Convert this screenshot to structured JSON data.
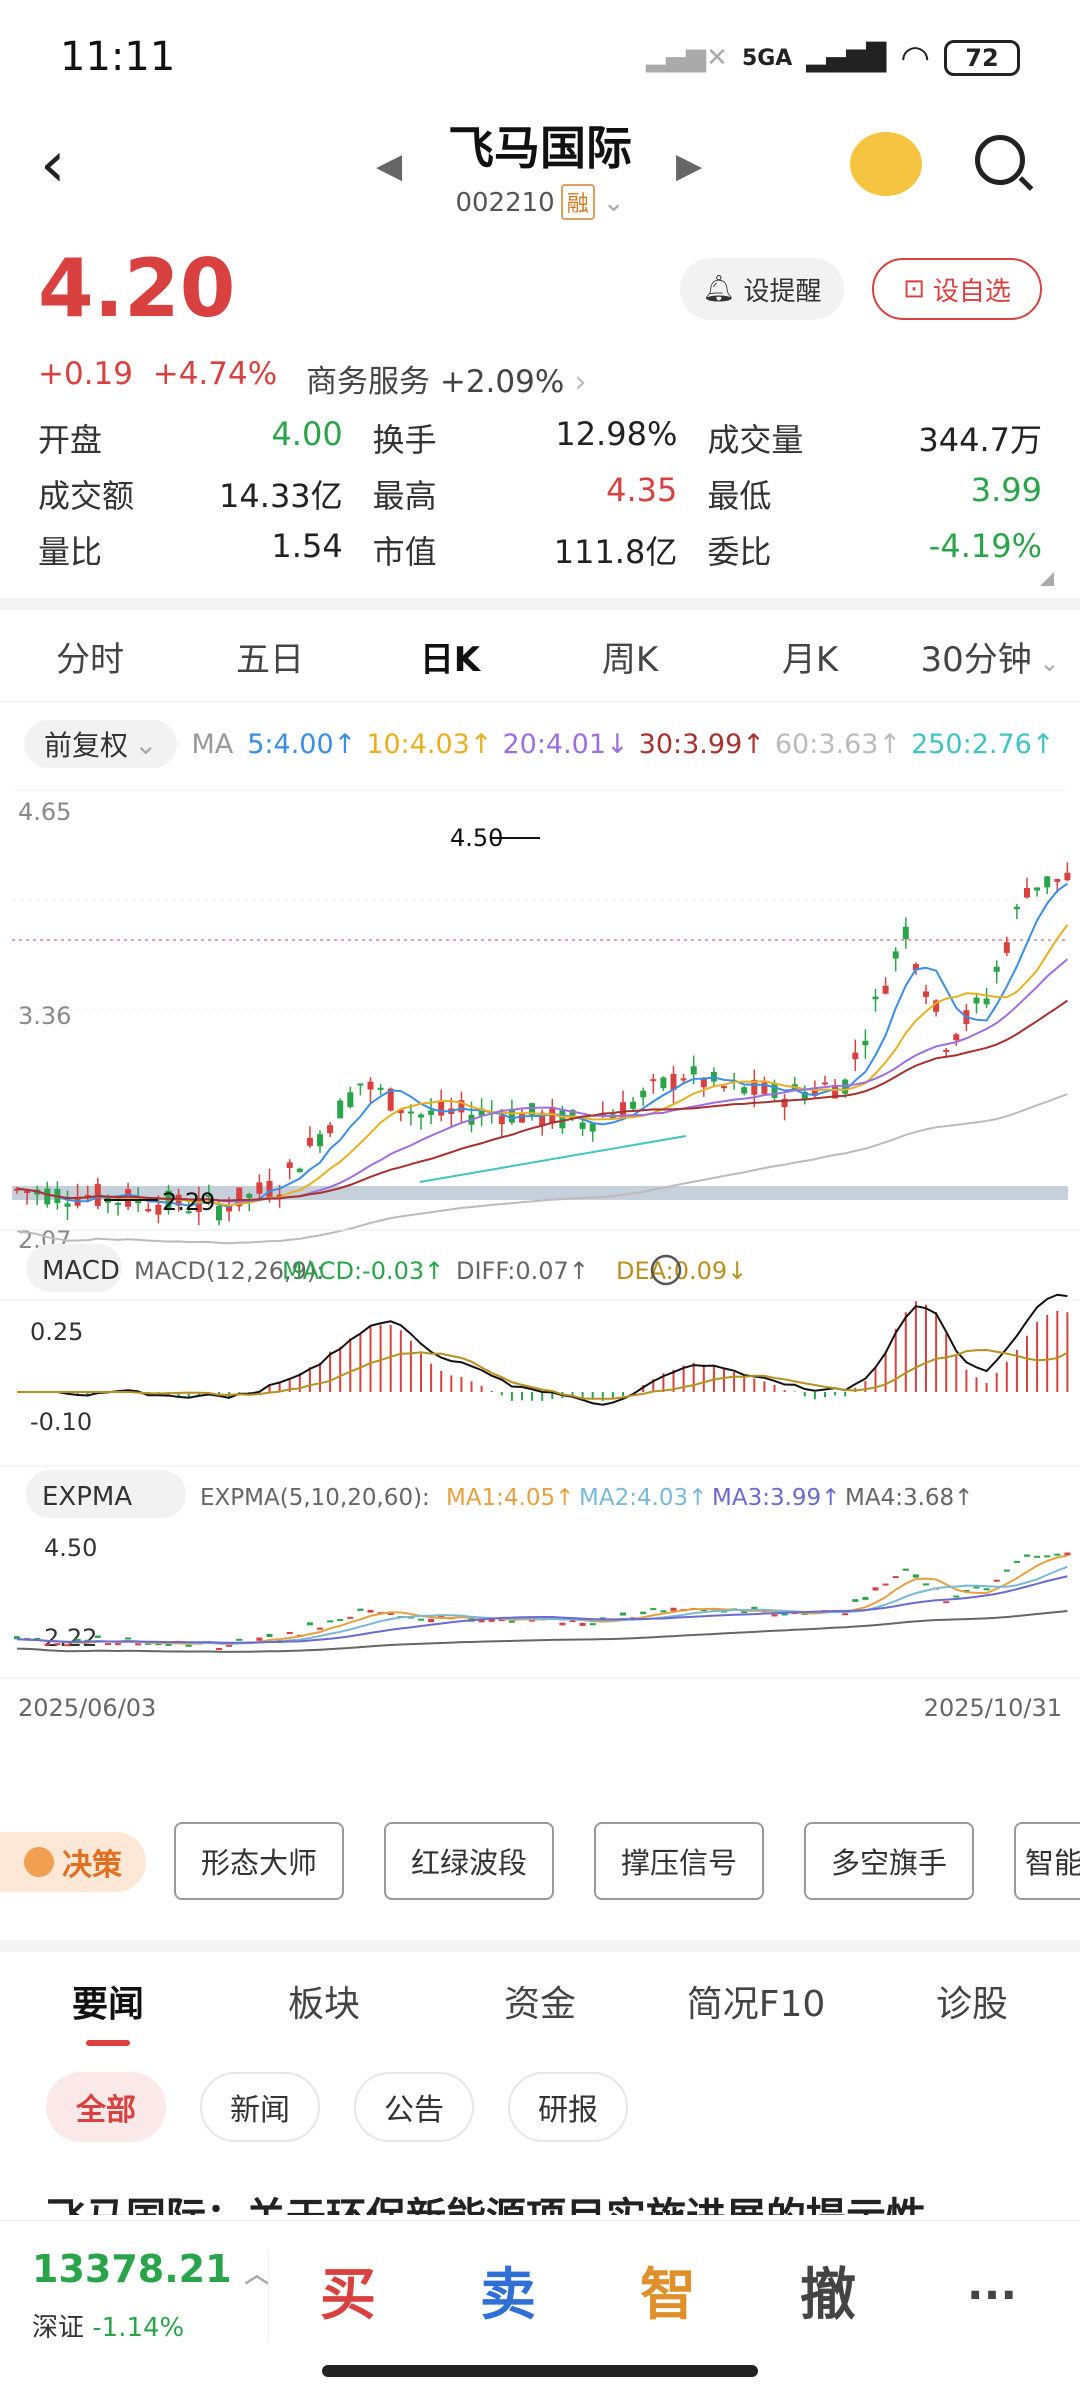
{
  "status": {
    "time": "11:11",
    "network": "5GA",
    "battery": "72"
  },
  "nav": {
    "name": "飞马国际",
    "code": "002210",
    "tag": "融"
  },
  "quote": {
    "price": "4.20",
    "change": "+0.19",
    "pct": "+4.74%",
    "sector_name": "商务服务",
    "sector_pct": "+2.09%"
  },
  "buttons": {
    "alert": "设提醒",
    "watch": "设自选"
  },
  "stats": [
    [
      {
        "l": "开盘",
        "v": "4.00",
        "c": "green"
      },
      {
        "l": "换手",
        "v": "12.98%",
        "c": ""
      },
      {
        "l": "成交量",
        "v": "344.7万",
        "c": ""
      }
    ],
    [
      {
        "l": "成交额",
        "v": "14.33亿",
        "c": ""
      },
      {
        "l": "最高",
        "v": "4.35",
        "c": "red"
      },
      {
        "l": "最低",
        "v": "3.99",
        "c": "green"
      }
    ],
    [
      {
        "l": "量比",
        "v": "1.54",
        "c": ""
      },
      {
        "l": "市值",
        "v": "111.8亿",
        "c": ""
      },
      {
        "l": "委比",
        "v": "-4.19%",
        "c": "green"
      }
    ]
  ],
  "tabs": [
    "分时",
    "五日",
    "日K",
    "周K",
    "月K",
    "30分钟"
  ],
  "active_tab": "日K",
  "chart": {
    "adjust": "前复权",
    "ma_label": "MA",
    "ma": [
      {
        "t": "5:4.00↑",
        "c": "#3a8ee6"
      },
      {
        "t": "10:4.03↑",
        "c": "#e6b020"
      },
      {
        "t": "20:4.01↓",
        "c": "#9c6fe0"
      },
      {
        "t": "30:3.99↑",
        "c": "#a83030"
      },
      {
        "t": "60:3.63↑",
        "c": "#bbbbbb"
      },
      {
        "t": "250:2.76↑",
        "c": "#40c4c0"
      }
    ],
    "y_top": "4.65",
    "y_mid": "3.36",
    "y_bot": "2.07",
    "hi_label": "4.50",
    "lo_label": "2.29",
    "macd_name": "MACD",
    "macd_params": "MACD(12,26,9):",
    "macd_vals": [
      {
        "t": "MACD:-0.03↑",
        "c": "#2aa44a"
      },
      {
        "t": "DIFF:0.07↑",
        "c": "#666"
      },
      {
        "t": "DEA:0.09↓",
        "c": "#b89020"
      }
    ],
    "macd_top": "0.25",
    "macd_bot": "-0.10",
    "expma_name": "EXPMA",
    "expma_params": "EXPMA(5,10,20,60):",
    "expma_vals": [
      {
        "t": "MA1:4.05↑",
        "c": "#e6a040"
      },
      {
        "t": "MA2:4.03↑",
        "c": "#7ab8d8"
      },
      {
        "t": "MA3:3.99↑",
        "c": "#6a6ad0"
      },
      {
        "t": "MA4:3.68↑",
        "c": "#666"
      }
    ],
    "expma_top": "4.50",
    "expma_bot": "2.22",
    "date_start": "2025/06/03",
    "date_end": "2025/10/31"
  },
  "tools": [
    "决策",
    "形态大师",
    "红绿波段",
    "撑压信号",
    "多空旗手",
    "智能"
  ],
  "news_tabs": [
    "要闻",
    "板块",
    "资金",
    "简况F10",
    "诊股"
  ],
  "news_sub": [
    "全部",
    "新闻",
    "公告",
    "研报"
  ],
  "headline": "飞马国际：关于环保新能源项目实施进展的提示性",
  "bottom": {
    "index_value": "13378.21",
    "index_name": "深证",
    "index_pct": "-1.14%",
    "buy": "买",
    "sell": "卖",
    "smart": "智",
    "cancel": "撤",
    "more": "···"
  },
  "colors": {
    "up": "#d94040",
    "down": "#2aa44a"
  }
}
